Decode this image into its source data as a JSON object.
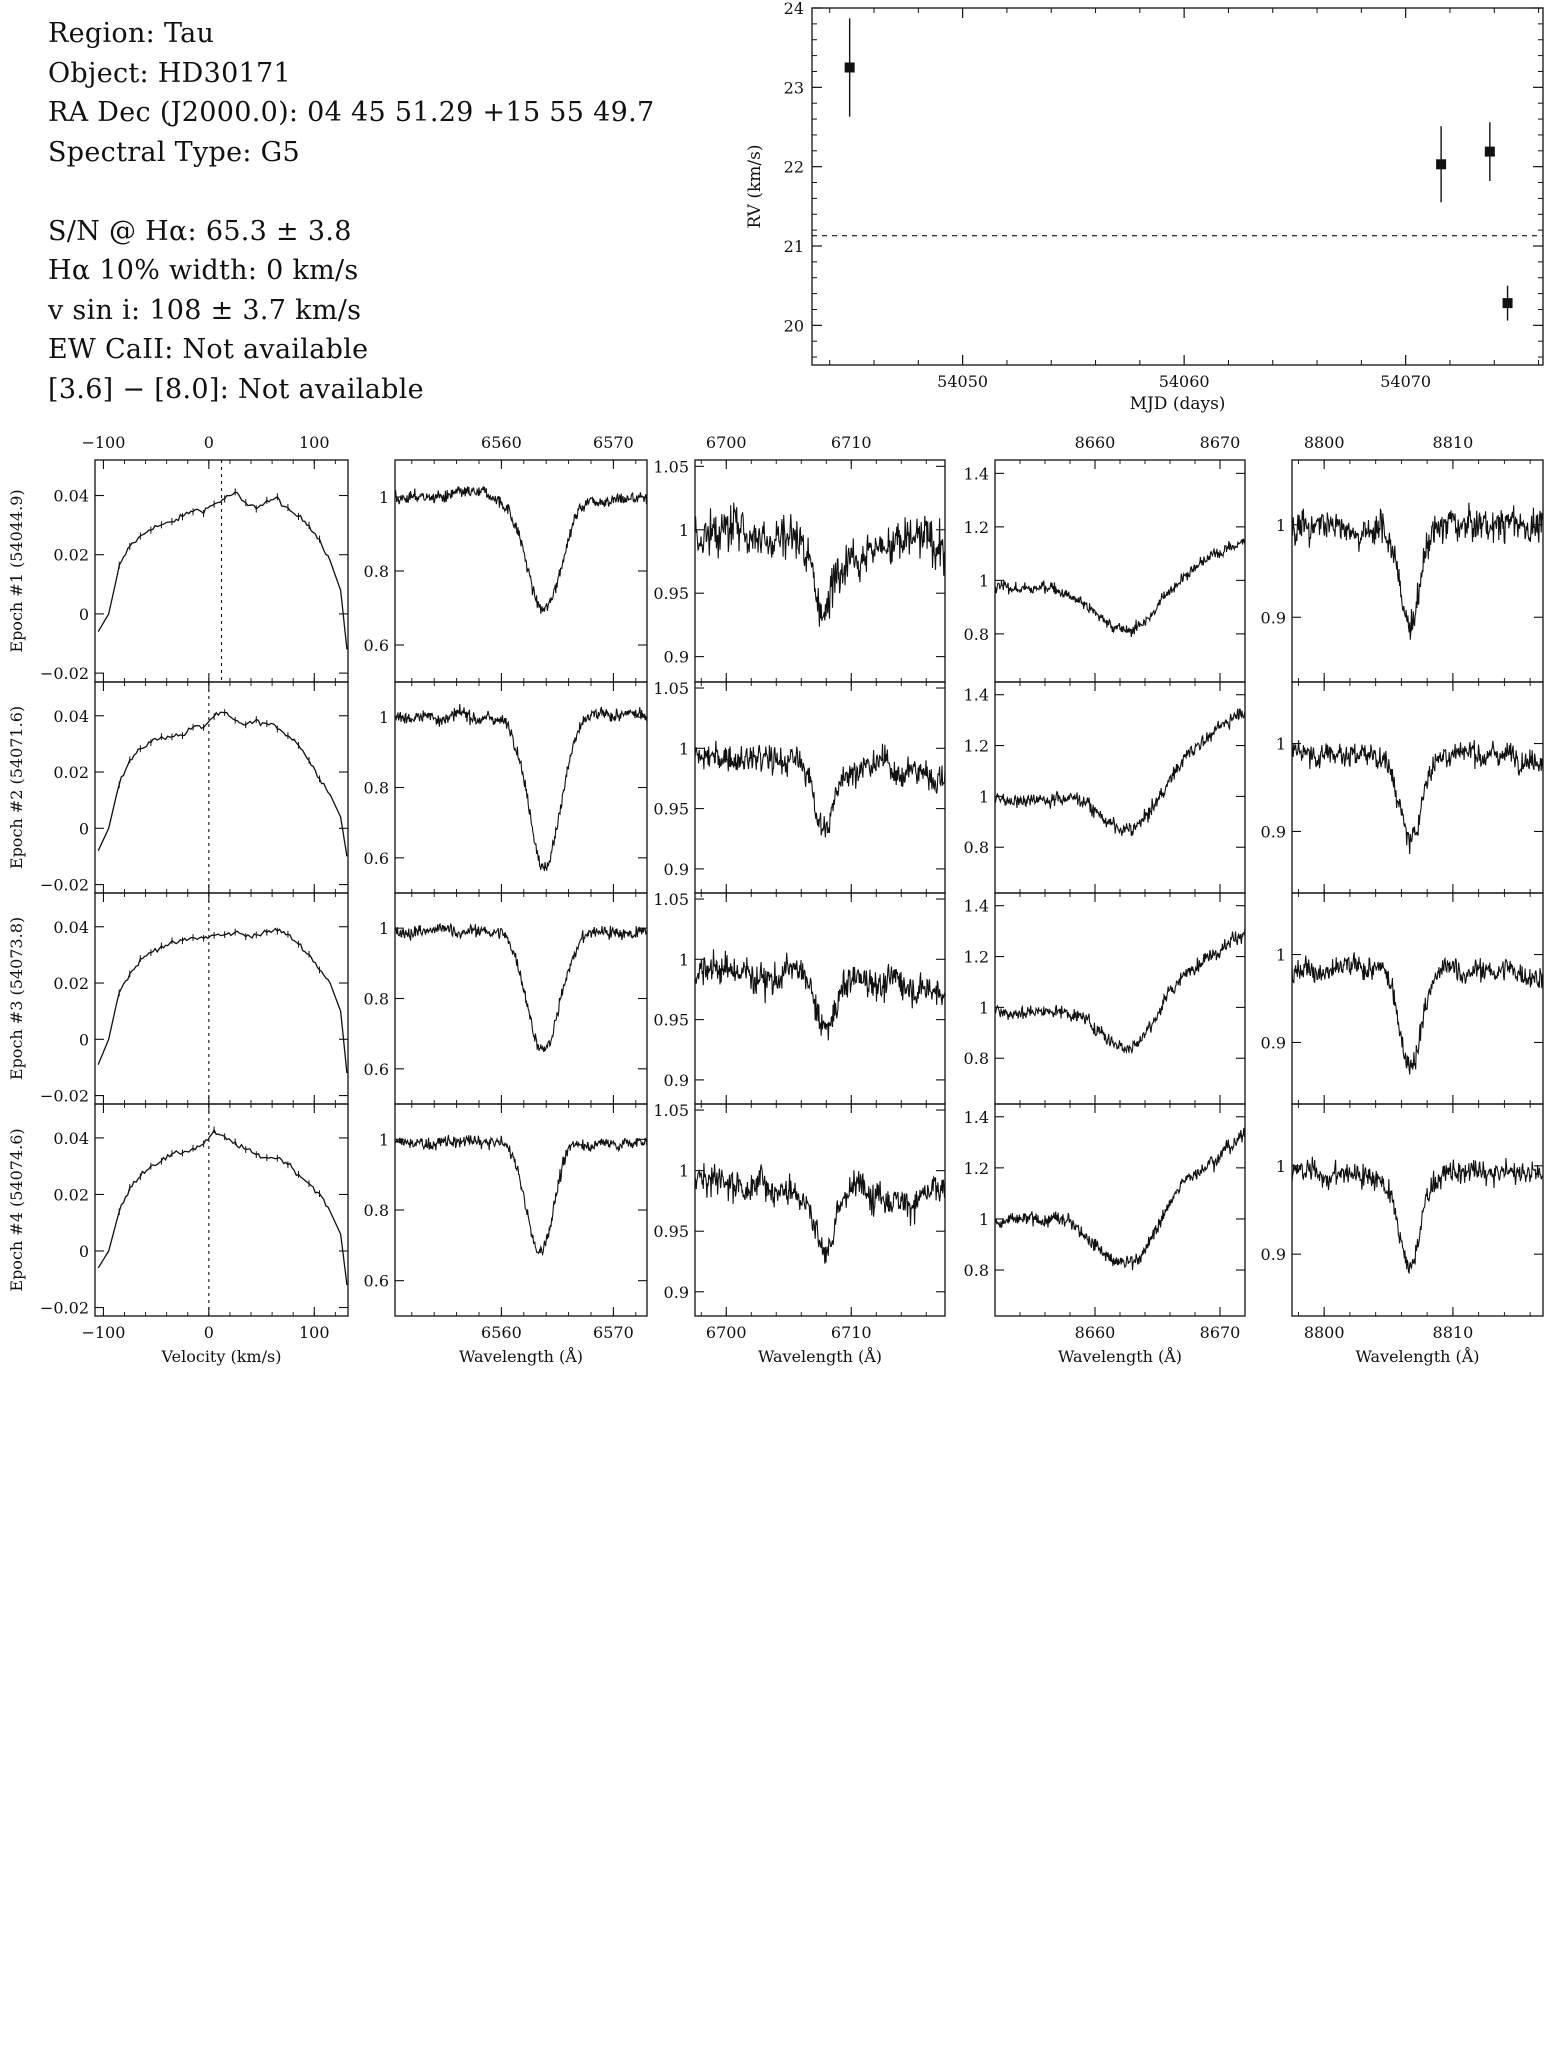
{
  "info": {
    "lines_top": [
      "Region: Tau",
      "Object: HD30171",
      "RA Dec (J2000.0): 04 45 51.29 +15 55 49.7",
      "Spectral Type: G5"
    ],
    "lines_bottom": [
      "S/N @ Hα: 65.3 ± 3.8",
      "Hα 10% width: 0 km/s",
      "v sin i: 108 ± 3.7 km/s",
      "EW CaII: Not available",
      "[3.6] − [8.0]: Not available"
    ]
  },
  "chart_data": [
    {
      "id": "rv",
      "type": "scatter",
      "xlabel": "MJD (days)",
      "ylabel": "RV (km/s)",
      "xlim": [
        54043.2,
        54076.2
      ],
      "ylim": [
        19.5,
        24.0
      ],
      "xticks": [
        54050,
        54060,
        54070
      ],
      "yticks": [
        20,
        21,
        22,
        23,
        24
      ],
      "reference_line": 21.13,
      "points": [
        {
          "x": 54044.9,
          "y": 23.25,
          "err": 0.62
        },
        {
          "x": 54071.6,
          "y": 22.03,
          "err": 0.48
        },
        {
          "x": 54073.8,
          "y": 22.19,
          "err": 0.37
        },
        {
          "x": 54074.6,
          "y": 20.28,
          "err": 0.22
        }
      ]
    },
    {
      "id": "spectra",
      "type": "line",
      "epochs": [
        "Epoch #1 (54044.9)",
        "Epoch #2 (54071.6)",
        "Epoch #3 (54073.8)",
        "Epoch #4 (54074.6)"
      ],
      "columns": [
        {
          "name": "ccf",
          "xlabel": "Velocity (km/s)",
          "xlim": [
            -108,
            132
          ],
          "ylim": [
            -0.023,
            0.052
          ],
          "xticks": [
            -100,
            0,
            100
          ],
          "yticks": [
            -0.02,
            0,
            0.02,
            0.04
          ],
          "ytick_labels": [
            "−0.02",
            "0",
            "0.02",
            "0.04"
          ],
          "xtick_labels": [
            "−100",
            "0",
            "100"
          ],
          "marker_x": [
            12,
            0,
            0,
            0
          ],
          "x": [
            -105,
            -95,
            -85,
            -75,
            -65,
            -55,
            -45,
            -35,
            -25,
            -15,
            -5,
            5,
            15,
            25,
            35,
            45,
            55,
            65,
            75,
            85,
            95,
            105,
            115,
            125,
            131
          ],
          "series": [
            {
              "name": "Epoch #1",
              "values": [
                -0.006,
                0.0,
                0.016,
                0.023,
                0.026,
                0.029,
                0.03,
                0.031,
                0.033,
                0.035,
                0.035,
                0.037,
                0.039,
                0.041,
                0.037,
                0.036,
                0.038,
                0.039,
                0.035,
                0.033,
                0.03,
                0.025,
                0.018,
                0.008,
                -0.012
              ]
            },
            {
              "name": "Epoch #2",
              "values": [
                -0.008,
                0.0,
                0.016,
                0.024,
                0.028,
                0.031,
                0.032,
                0.033,
                0.033,
                0.036,
                0.036,
                0.04,
                0.041,
                0.038,
                0.037,
                0.038,
                0.037,
                0.036,
                0.033,
                0.03,
                0.024,
                0.018,
                0.012,
                0.004,
                -0.01
              ]
            },
            {
              "name": "Epoch #3",
              "values": [
                -0.009,
                0.0,
                0.017,
                0.023,
                0.028,
                0.031,
                0.033,
                0.034,
                0.035,
                0.036,
                0.036,
                0.037,
                0.037,
                0.038,
                0.037,
                0.037,
                0.038,
                0.039,
                0.037,
                0.034,
                0.03,
                0.025,
                0.02,
                0.01,
                -0.012
              ]
            },
            {
              "name": "Epoch #4",
              "values": [
                -0.006,
                0.0,
                0.014,
                0.022,
                0.027,
                0.03,
                0.032,
                0.034,
                0.035,
                0.036,
                0.038,
                0.042,
                0.04,
                0.038,
                0.036,
                0.034,
                0.033,
                0.033,
                0.031,
                0.027,
                0.024,
                0.02,
                0.014,
                0.006,
                -0.012
              ]
            }
          ]
        },
        {
          "name": "halpha",
          "xlabel": "Wavelength (Å)",
          "xlim": [
            6550.5,
            6573
          ],
          "ylim": [
            0.5,
            1.1
          ],
          "xticks": [
            6560,
            6570
          ],
          "yticks": [
            0.6,
            0.8,
            1.0
          ],
          "ytick_labels": [
            "0.6",
            "0.8",
            "1"
          ],
          "line": {
            "continuum": [
              1.0,
              1.0,
              0.99,
              0.99
            ],
            "center": [
              6563.8,
              6563.9,
              6563.8,
              6563.4
            ],
            "depth": [
              0.31,
              0.42,
              0.34,
              0.31
            ],
            "width": [
              2.4,
              2.2,
              2.3,
              1.9
            ],
            "tilt": [
              0.0,
              0.0,
              0.0,
              0.0
            ],
            "noise": [
              0.012,
              0.012,
              0.012,
              0.012
            ]
          }
        },
        {
          "name": "li6708",
          "xlabel": "Wavelength (Å)",
          "xlim": [
            6697.5,
            6717.5
          ],
          "ylim": [
            0.88,
            1.055
          ],
          "xticks": [
            6700,
            6710
          ],
          "yticks": [
            0.9,
            0.95,
            1.0,
            1.05
          ],
          "ytick_labels": [
            "0.9",
            "0.95",
            "1",
            "1.05"
          ],
          "line": {
            "continuum": [
              1.0,
              0.99,
              0.99,
              0.99
            ],
            "center": [
              6707.9,
              6707.9,
              6707.9,
              6708.0
            ],
            "depth": [
              0.06,
              0.05,
              0.05,
              0.05
            ],
            "width": [
              1.2,
              1.3,
              1.3,
              1.2
            ],
            "tilt": [
              -0.005,
              -0.004,
              -0.004,
              -0.004
            ],
            "noise": [
              0.012,
              0.008,
              0.009,
              0.009
            ]
          }
        },
        {
          "name": "ca8662",
          "xlabel": "Wavelength (Å)",
          "xlim": [
            8652,
            8672
          ],
          "ylim": [
            0.62,
            1.45
          ],
          "xticks": [
            8660,
            8670
          ],
          "yticks": [
            0.8,
            1.0,
            1.2,
            1.4
          ],
          "ytick_labels": [
            "0.8",
            "1",
            "1.2",
            "1.4"
          ],
          "line": {
            "continuum": [
              0.97,
              0.99,
              0.98,
              0.98
            ],
            "center": [
              8662.8,
              8663.0,
              8662.8,
              8662.8
            ],
            "depth": [
              0.2,
              0.22,
              0.21,
              0.24
            ],
            "width": [
              4.0,
              3.5,
              3.6,
              3.6
            ],
            "tilt": [
              0.06,
              0.12,
              0.11,
              0.12
            ],
            "noise": [
              0.015,
              0.018,
              0.018,
              0.018
            ]
          }
        },
        {
          "name": "ca8806",
          "xlabel": "Wavelength (Å)",
          "xlim": [
            8797.5,
            8817
          ],
          "ylim": [
            0.83,
            1.07
          ],
          "xticks": [
            8800,
            8810
          ],
          "yticks": [
            0.9,
            1.0
          ],
          "ytick_labels": [
            "0.9",
            "1"
          ],
          "line": {
            "continuum": [
              1.0,
              0.99,
              0.98,
              0.99
            ],
            "center": [
              8806.7,
              8806.7,
              8806.7,
              8806.6
            ],
            "depth": [
              0.11,
              0.1,
              0.1,
              0.11
            ],
            "width": [
              1.3,
              1.4,
              1.4,
              1.3
            ],
            "tilt": [
              0.0,
              0.0,
              0.0,
              0.0
            ],
            "noise": [
              0.012,
              0.009,
              0.009,
              0.009
            ]
          }
        }
      ]
    }
  ]
}
